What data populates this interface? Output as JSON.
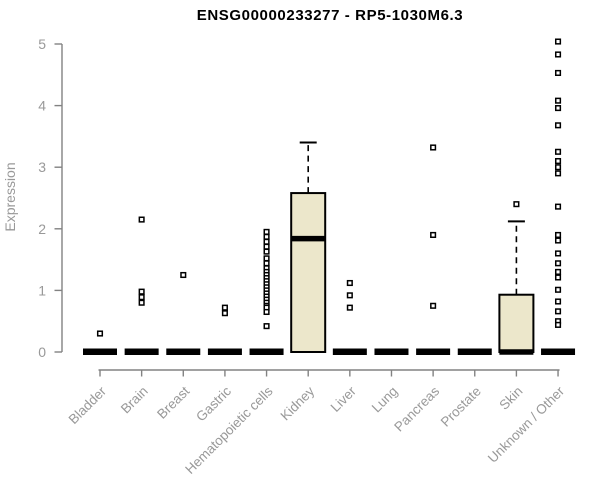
{
  "page": {
    "title": "ENSG00000233277 - RP5-1030M6.3"
  },
  "chart_data": {
    "type": "boxplot",
    "title": "ENSG00000233277 - RP5-1030M6.3",
    "xlabel": "",
    "ylabel": "Expression",
    "ylim": [
      0,
      5
    ],
    "yticks": [
      0,
      1,
      2,
      3,
      4,
      5
    ],
    "grid": false,
    "legend": "none",
    "categories": [
      "Bladder",
      "Brain",
      "Breast",
      "Gastric",
      "Hematopoietic cells",
      "Kidney",
      "Liver",
      "Lung",
      "Pancreas",
      "Prostate",
      "Skin",
      "Unknown / Other"
    ],
    "boxes": [
      {
        "category": "Bladder",
        "q1": 0,
        "median": 0,
        "q3": 0,
        "whisker_low": 0,
        "whisker_high": 0,
        "outliers": [
          0.3
        ]
      },
      {
        "category": "Brain",
        "q1": 0,
        "median": 0,
        "q3": 0,
        "whisker_low": 0,
        "whisker_high": 0,
        "outliers": [
          2.15,
          0.98,
          0.89,
          0.8
        ]
      },
      {
        "category": "Breast",
        "q1": 0,
        "median": 0,
        "q3": 0,
        "whisker_low": 0,
        "whisker_high": 0,
        "outliers": [
          1.25
        ]
      },
      {
        "category": "Gastric",
        "q1": 0,
        "median": 0,
        "q3": 0,
        "whisker_low": 0,
        "whisker_high": 0,
        "outliers": [
          0.72,
          0.63
        ]
      },
      {
        "category": "Hematopoietic cells",
        "q1": 0,
        "median": 0,
        "q3": 0,
        "whisker_low": 0,
        "whisker_high": 0,
        "outliers": [
          1.95,
          1.87,
          1.79,
          1.71,
          1.63,
          1.52,
          1.44,
          1.36,
          1.3,
          1.25,
          1.2,
          1.15,
          1.1,
          1.05,
          1.0,
          0.95,
          0.9,
          0.85,
          0.8,
          0.75,
          0.72,
          0.65,
          0.42
        ]
      },
      {
        "category": "Kidney",
        "q1": 0,
        "median": 1.84,
        "q3": 2.58,
        "whisker_low": 0,
        "whisker_high": 3.4,
        "outliers": []
      },
      {
        "category": "Liver",
        "q1": 0,
        "median": 0,
        "q3": 0,
        "whisker_low": 0,
        "whisker_high": 0,
        "outliers": [
          1.12,
          0.92,
          0.72
        ]
      },
      {
        "category": "Lung",
        "q1": 0,
        "median": 0,
        "q3": 0,
        "whisker_low": 0,
        "whisker_high": 0,
        "outliers": []
      },
      {
        "category": "Pancreas",
        "q1": 0,
        "median": 0,
        "q3": 0,
        "whisker_low": 0,
        "whisker_high": 0,
        "outliers": [
          3.32,
          1.9,
          0.75
        ]
      },
      {
        "category": "Prostate",
        "q1": 0,
        "median": 0,
        "q3": 0,
        "whisker_low": 0,
        "whisker_high": 0,
        "outliers": []
      },
      {
        "category": "Skin",
        "q1": 0,
        "median": 0,
        "q3": 0.93,
        "whisker_low": 0,
        "whisker_high": 2.12,
        "outliers": [
          2.4
        ]
      },
      {
        "category": "Unknown / Other",
        "q1": 0,
        "median": 0,
        "q3": 0,
        "whisker_low": 0,
        "whisker_high": 0,
        "outliers": [
          5.04,
          4.83,
          4.53,
          4.08,
          3.96,
          3.68,
          3.25,
          3.1,
          3.0,
          2.9,
          2.36,
          1.9,
          1.81,
          1.6,
          1.44,
          1.3,
          1.21,
          1.01,
          0.82,
          0.66,
          0.5,
          0.44
        ]
      }
    ],
    "colors": {
      "box_fill": "#ECE7CB",
      "box_stroke": "#000000",
      "median": "#000000",
      "outlier_stroke": "#000000",
      "outlier_fill": "#FFFFFF",
      "axis": "#828282",
      "tick_label": "#999999",
      "title": "#000000",
      "background": "#FFFFFF"
    }
  }
}
